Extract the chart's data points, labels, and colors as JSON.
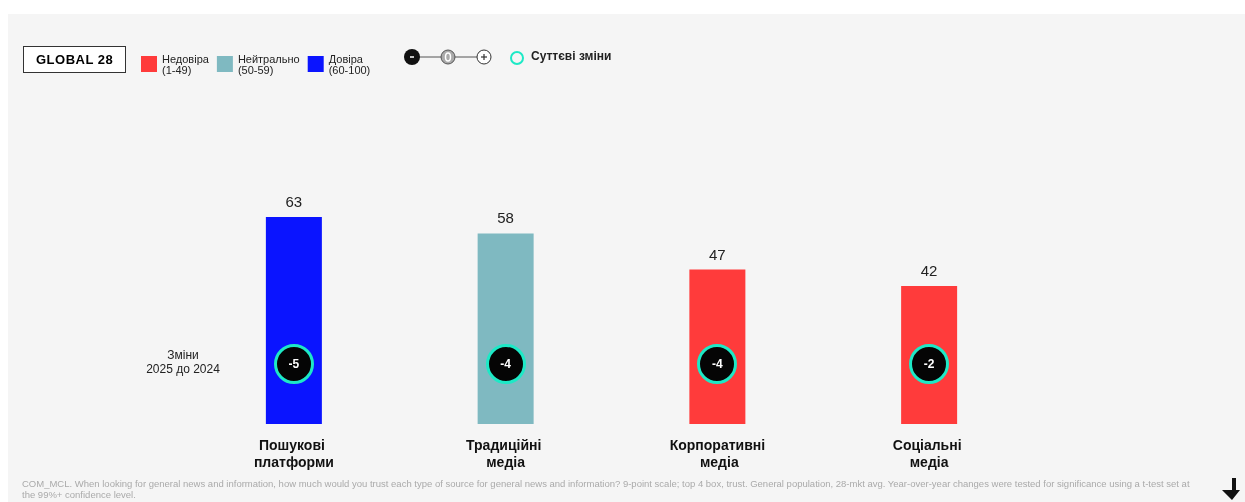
{
  "chart_data": {
    "type": "bar",
    "subtitle": "GLOBAL 28",
    "categories": [
      "Пошукові платформи",
      "Традиційні медіа",
      "Корпоративні медіа",
      "Соціальні медіа"
    ],
    "series": [
      {
        "name": "Недовіра\n(1-49)",
        "color": "#ff3b3b",
        "values": [
          null,
          null,
          47,
          42
        ]
      },
      {
        "name": "Нейтрально\n(50-59)",
        "color": "#7fb9c1",
        "values": [
          null,
          58,
          null,
          null
        ]
      },
      {
        "name": "Довіра\n(60-100)",
        "color": "#0a14ff",
        "values": [
          63,
          null,
          null,
          null
        ]
      }
    ],
    "stacked": true,
    "data_labels": true,
    "legend": "top left",
    "annotations": [
      "Суттєві зміни",
      "Зміни\n2025 до 2024",
      {
        "text": "-5",
        "x": "Пошукові платформи"
      },
      {
        "text": "-4",
        "x": "Традиційні медіа"
      },
      {
        "text": "-4",
        "x": "Корпоративні медіа"
      },
      {
        "text": "-2",
        "x": "Соціальні медіа"
      },
      "COM_MCL. When looking for general news and information, how much would you trust each type of source for general news and information? 9-point scale; top 4 box, trust. General population, 28-mkt avg. Year-over-year changes were tested for significance using a t-test set at the 99%+ confidence level."
    ]
  }
}
